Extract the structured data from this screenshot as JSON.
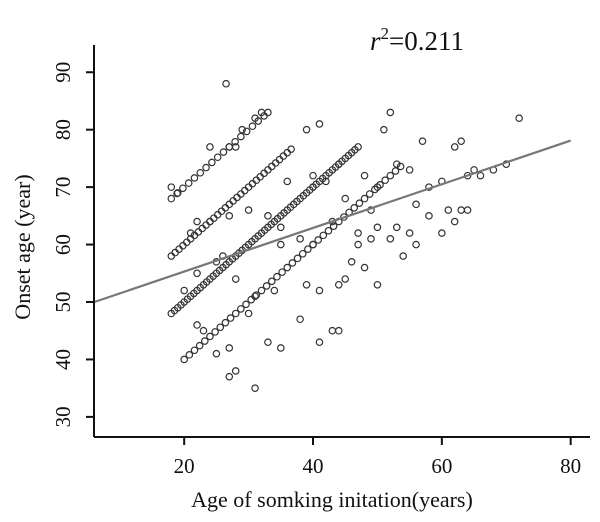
{
  "chart_data": {
    "type": "scatter",
    "xlabel": "Age of somking initation(years)",
    "ylabel": "Onset age (year)",
    "xlim": [
      6,
      83
    ],
    "ylim": [
      26.5,
      93
    ],
    "xticks": [
      20,
      40,
      60,
      80
    ],
    "yticks": [
      30,
      40,
      50,
      60,
      70,
      80,
      90
    ],
    "grid": false,
    "annotation": {
      "r_symbol": "r",
      "exponent": "2",
      "value_text": "=0.211",
      "r_squared": 0.211
    },
    "regression": {
      "intercept": 47.7,
      "slope": 0.38,
      "color": "#777777"
    },
    "point_color": "#333333",
    "bands": [
      {
        "offset": 20,
        "x_from": 20,
        "x_to": 54,
        "step": 0.8
      },
      {
        "offset": 30,
        "x_from": 18,
        "x_to": 47,
        "step": 0.5
      },
      {
        "offset": 40,
        "x_from": 18,
        "x_to": 37,
        "step": 0.6
      },
      {
        "offset": 50,
        "x_from": 18,
        "x_to": 33,
        "step": 0.9
      }
    ],
    "scatter_points": [
      [
        26.5,
        88
      ],
      [
        31,
        82
      ],
      [
        32,
        83
      ],
      [
        33,
        83
      ],
      [
        29,
        80
      ],
      [
        27,
        77
      ],
      [
        28,
        77
      ],
      [
        24,
        77
      ],
      [
        39,
        80
      ],
      [
        52,
        83
      ],
      [
        72,
        82
      ],
      [
        57,
        78
      ],
      [
        62,
        77
      ],
      [
        63,
        78
      ],
      [
        41,
        81
      ],
      [
        51,
        80
      ],
      [
        44,
        74
      ],
      [
        40,
        72
      ],
      [
        36,
        71
      ],
      [
        40,
        70
      ],
      [
        42,
        71
      ],
      [
        48,
        72
      ],
      [
        50,
        70
      ],
      [
        45,
        68
      ],
      [
        49,
        66
      ],
      [
        43,
        64
      ],
      [
        50,
        63
      ],
      [
        53,
        63
      ],
      [
        55,
        62
      ],
      [
        56,
        60
      ],
      [
        60,
        62
      ],
      [
        62,
        64
      ],
      [
        64,
        66
      ],
      [
        65,
        73
      ],
      [
        60,
        71
      ],
      [
        68,
        73
      ],
      [
        64,
        72
      ],
      [
        53,
        74
      ],
      [
        55,
        73
      ],
      [
        22,
        64
      ],
      [
        24,
        64
      ],
      [
        27,
        65
      ],
      [
        30,
        66
      ],
      [
        33,
        65
      ],
      [
        35,
        63
      ],
      [
        38,
        61
      ],
      [
        40,
        60
      ],
      [
        47,
        60
      ],
      [
        46,
        57
      ],
      [
        48,
        56
      ],
      [
        45,
        54
      ],
      [
        50,
        53
      ],
      [
        44,
        53
      ],
      [
        39,
        53
      ],
      [
        38,
        47
      ],
      [
        34,
        52
      ],
      [
        41,
        52
      ],
      [
        30,
        48
      ],
      [
        27,
        42
      ],
      [
        28,
        38
      ],
      [
        27,
        37
      ],
      [
        31,
        35
      ],
      [
        35,
        42
      ],
      [
        33,
        43
      ],
      [
        44,
        45
      ],
      [
        43,
        45
      ],
      [
        41,
        43
      ],
      [
        25,
        41
      ],
      [
        23,
        45
      ],
      [
        22,
        46
      ],
      [
        20,
        52
      ],
      [
        22,
        55
      ],
      [
        18,
        70
      ],
      [
        19,
        69
      ],
      [
        25,
        57
      ],
      [
        26,
        58
      ],
      [
        28,
        54
      ],
      [
        31,
        51
      ],
      [
        21,
        62
      ],
      [
        35,
        60
      ],
      [
        58,
        65
      ],
      [
        61,
        66
      ],
      [
        52,
        61
      ],
      [
        54,
        58
      ],
      [
        63,
        66
      ],
      [
        47,
        62
      ],
      [
        49,
        61
      ],
      [
        66,
        72
      ],
      [
        70,
        74
      ],
      [
        56,
        67
      ],
      [
        58,
        70
      ]
    ]
  }
}
